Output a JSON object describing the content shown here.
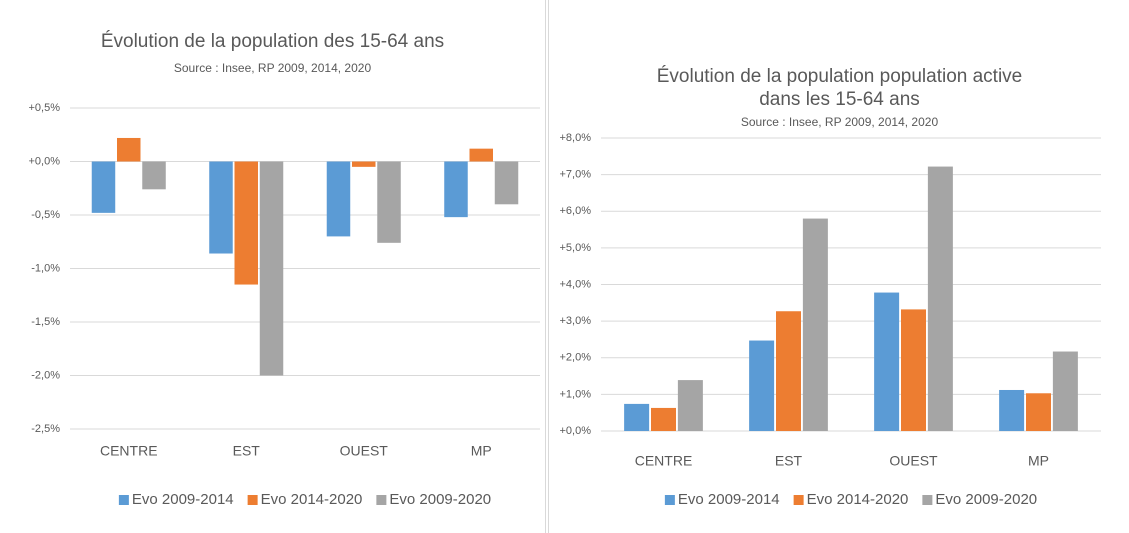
{
  "chart_data": [
    {
      "type": "bar",
      "title": "Évolution de la population des 15-64 ans",
      "subtitle": "Source : Insee, RP 2009, 2014, 2020",
      "categories": [
        "CENTRE",
        "EST",
        "OUEST",
        "MP"
      ],
      "series": [
        {
          "name": "Evo 2009-2014",
          "color": "#5b9bd5",
          "values": [
            -0.48,
            -0.86,
            -0.7,
            -0.52
          ]
        },
        {
          "name": "Evo 2014-2020",
          "color": "#ed7d31",
          "values": [
            0.22,
            -1.15,
            -0.05,
            0.12
          ]
        },
        {
          "name": "Evo 2009-2020",
          "color": "#a5a5a5",
          "values": [
            -0.26,
            -2.0,
            -0.76,
            -0.4
          ]
        }
      ],
      "ylim": [
        -2.5,
        0.5
      ],
      "yticks": [
        {
          "value": 0.5,
          "label": "+0,5%"
        },
        {
          "value": 0,
          "label": "+0,0%"
        },
        {
          "value": -0.5,
          "label": "-0,5%"
        },
        {
          "value": -1,
          "label": "-1,0%"
        },
        {
          "value": -1.5,
          "label": "-1,5%"
        },
        {
          "value": -2,
          "label": "-2,0%"
        },
        {
          "value": -2.5,
          "label": "-2,5%"
        }
      ],
      "grid": true,
      "legend": "bottom"
    },
    {
      "type": "bar",
      "title": "Évolution de la population population active dans les 15-64 ans",
      "subtitle": "Source : Insee, RP 2009, 2014, 2020",
      "categories": [
        "CENTRE",
        "EST",
        "OUEST",
        "MP"
      ],
      "series": [
        {
          "name": "Evo 2009-2014",
          "color": "#5b9bd5",
          "values": [
            0.74,
            2.47,
            3.78,
            1.12
          ]
        },
        {
          "name": "Evo 2014-2020",
          "color": "#ed7d31",
          "values": [
            0.63,
            3.27,
            3.32,
            1.03
          ]
        },
        {
          "name": "Evo 2009-2020",
          "color": "#a5a5a5",
          "values": [
            1.39,
            5.8,
            7.22,
            2.17
          ]
        }
      ],
      "ylim": [
        0,
        8
      ],
      "yticks": [
        {
          "value": 0,
          "label": "+0,0%"
        },
        {
          "value": 1,
          "label": "+1,0%"
        },
        {
          "value": 2,
          "label": "+2,0%"
        },
        {
          "value": 3,
          "label": "+3,0%"
        },
        {
          "value": 4,
          "label": "+4,0%"
        },
        {
          "value": 5,
          "label": "+5,0%"
        },
        {
          "value": 6,
          "label": "+6,0%"
        },
        {
          "value": 7,
          "label": "+7,0%"
        },
        {
          "value": 8,
          "label": "+8,0%"
        }
      ],
      "grid": true,
      "legend": "bottom"
    }
  ]
}
